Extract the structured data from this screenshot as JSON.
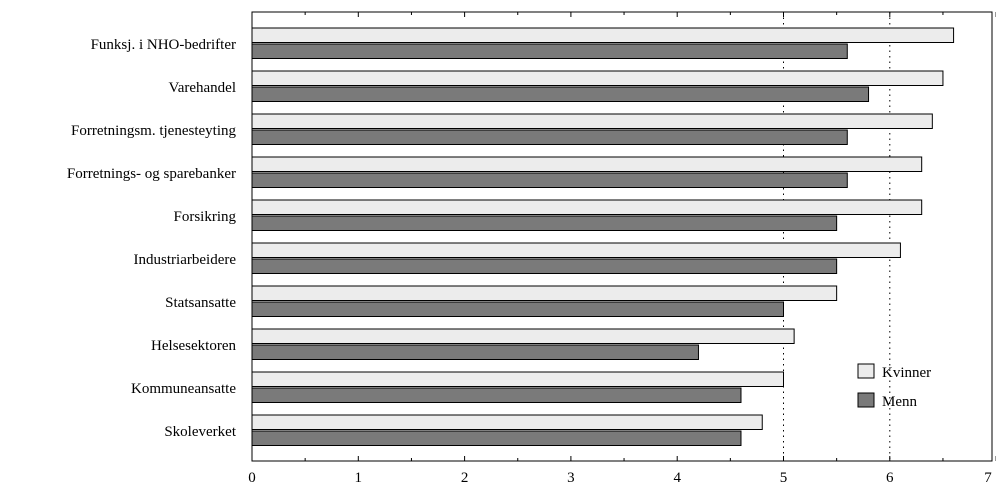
{
  "chart_data": {
    "type": "bar",
    "orientation": "horizontal",
    "categories": [
      "Funksj. i NHO-bedrifter",
      "Varehandel",
      "Forretningsm. tjenesteyting",
      "Forretnings- og sparebanker",
      "Forsikring",
      "Industriarbeidere",
      "Statsansatte",
      "Helsesektoren",
      "Kommuneansatte",
      "Skoleverket"
    ],
    "series": [
      {
        "name": "Kvinner",
        "color": "#ececec",
        "values": [
          6.6,
          6.5,
          6.4,
          6.3,
          6.3,
          6.1,
          5.5,
          5.1,
          5.0,
          4.8
        ]
      },
      {
        "name": "Menn",
        "color": "#7a7a7a",
        "values": [
          5.6,
          5.8,
          5.6,
          5.6,
          5.5,
          5.5,
          5.0,
          4.2,
          4.6,
          4.6
        ]
      }
    ],
    "xlim": [
      0,
      7
    ],
    "xticks": [
      "0",
      "1",
      "2",
      "3",
      "4",
      "5",
      "6",
      "7"
    ],
    "reference_lines": [
      5,
      6
    ],
    "legend_position": "right"
  }
}
